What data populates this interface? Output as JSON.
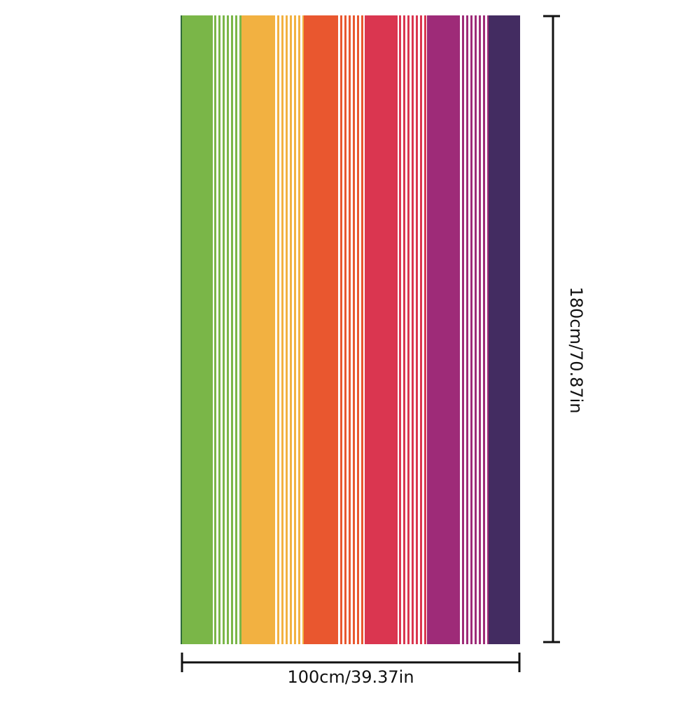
{
  "dimensions": {
    "width": "100cm/39.37in",
    "height": "180cm/70.87in"
  }
}
